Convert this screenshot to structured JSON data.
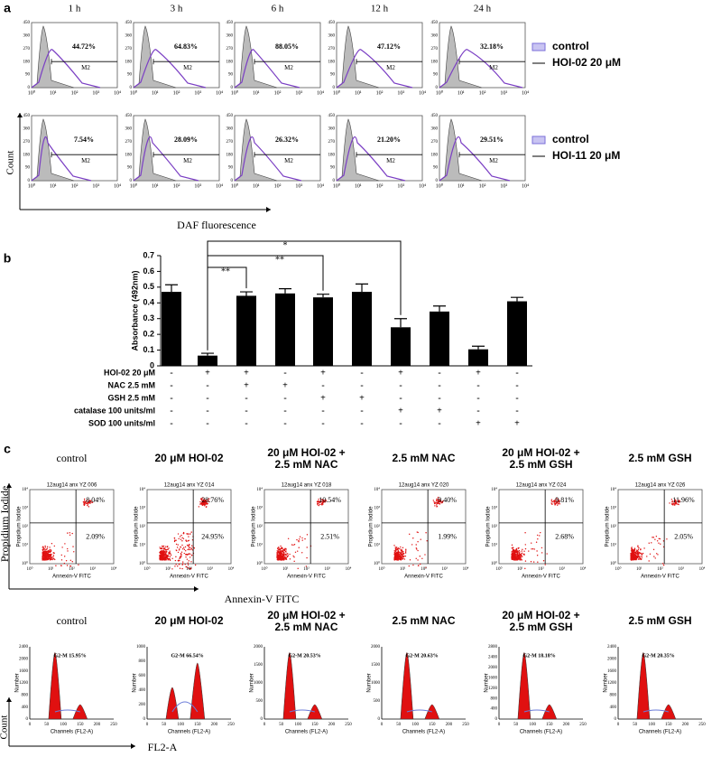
{
  "panel_a": {
    "label": "a",
    "columns": [
      "1 h",
      "3 h",
      "6 h",
      "12 h",
      "24 h"
    ],
    "rows": [
      {
        "percentages": [
          "44.72%",
          "64.83%",
          "88.05%",
          "47.12%",
          "32.18%"
        ],
        "legend": {
          "control": "control",
          "treatment": "HOI-02 20 μM"
        }
      },
      {
        "percentages": [
          "7.54%",
          "28.09%",
          "26.32%",
          "21.20%",
          "29.51%"
        ],
        "legend": {
          "control": "control",
          "treatment": "HOI-11 20 μM"
        }
      }
    ],
    "gate": "M2",
    "y_ticks": [
      0,
      90,
      180,
      270,
      360,
      450
    ],
    "x_ticks": [
      "10⁰",
      "10¹",
      "10²",
      "10³",
      "10⁴"
    ],
    "y_label": "Count",
    "x_label": "DAF fluorescence"
  },
  "chart_data": {
    "type": "bar",
    "label": "b",
    "y_label": "Absorbance (492nm)",
    "values": [
      0.47,
      0.065,
      0.445,
      0.46,
      0.435,
      0.47,
      0.245,
      0.345,
      0.105,
      0.41
    ],
    "errors": [
      0.045,
      0.015,
      0.025,
      0.03,
      0.02,
      0.05,
      0.055,
      0.035,
      0.02,
      0.025
    ],
    "color": "#000000",
    "ylim": [
      0,
      0.7
    ],
    "yticks": [
      0,
      0.1,
      0.2,
      0.3,
      0.4,
      0.5,
      0.6,
      0.7
    ],
    "significance": [
      "**",
      "**",
      "*"
    ],
    "treatments": [
      {
        "name": "HOI-02 20 μM",
        "signs": [
          "-",
          "+",
          "+",
          "-",
          "+",
          "-",
          "+",
          "-",
          "+",
          "-"
        ]
      },
      {
        "name": "NAC 2.5 mM",
        "signs": [
          "-",
          "-",
          "+",
          "+",
          "-",
          "-",
          "-",
          "-",
          "-",
          "-"
        ]
      },
      {
        "name": "GSH 2.5 mM",
        "signs": [
          "-",
          "-",
          "-",
          "-",
          "+",
          "+",
          "-",
          "-",
          "-",
          "-"
        ]
      },
      {
        "name": "catalase 100 units/ml",
        "signs": [
          "-",
          "-",
          "-",
          "-",
          "-",
          "-",
          "+",
          "+",
          "-",
          "-"
        ]
      },
      {
        "name": "SOD 100 units/ml",
        "signs": [
          "-",
          "-",
          "-",
          "-",
          "-",
          "-",
          "-",
          "-",
          "+",
          "+"
        ]
      }
    ]
  },
  "panel_c": {
    "label": "c",
    "titles": [
      [
        "control"
      ],
      [
        "20 μM HOI-02"
      ],
      [
        "20 μM HOI-02 +",
        "2.5 mM NAC"
      ],
      [
        "2.5 mM NAC"
      ],
      [
        "20 μM HOI-02 +",
        "2.5 mM GSH"
      ],
      [
        "2.5 mM GSH"
      ]
    ],
    "apoptosis": {
      "files": [
        "12aug14 anx YZ 006",
        "12aug14 anx YZ 014",
        "12aug14 anx YZ 018",
        "12aug14 anx YZ 020",
        "12aug14 anx YZ 024",
        "12aug14 anx YZ 026"
      ],
      "upper_right": [
        "8.04%",
        "28.76%",
        "10.54%",
        "9.40%",
        "9.81%",
        "11.96%"
      ],
      "lower_right": [
        "2.09%",
        "24.95%",
        "2.51%",
        "1.99%",
        "2.68%",
        "2.05%"
      ],
      "y_label": "Propidium Iodide",
      "x_label": "Annexin-V FITC",
      "ticks": [
        "10⁰",
        "10¹",
        "10²",
        "10³",
        "10⁴"
      ],
      "big_y_label": "Propidium Iodide",
      "big_x_label": "Annexin-V FITC"
    },
    "cell_cycle": {
      "g2m": [
        "G2-M 15.95%",
        "G2-M 66.54%",
        "G2-M 20.53%",
        "G2-M 20.63%",
        "G2-M 18.18%",
        "G2-M 20.35%"
      ],
      "y_ticks": [
        [
          0,
          400,
          800,
          1200,
          1600,
          2000,
          2400
        ],
        [
          0,
          200,
          400,
          600,
          800,
          1000
        ],
        [
          0,
          500,
          1000,
          1500,
          2000
        ],
        [
          0,
          500,
          1000,
          1500,
          2000
        ],
        [
          0,
          400,
          800,
          1200,
          1600,
          2000,
          2400,
          2800
        ],
        [
          0,
          400,
          800,
          1200,
          1600,
          2000,
          2400
        ]
      ],
      "x_ticks": [
        0,
        50,
        100,
        150,
        200,
        250
      ],
      "y_label": "Number",
      "x_label": "Channels (FL2-A)",
      "big_y_label": "Count",
      "big_x_label": "FL2-A"
    }
  }
}
